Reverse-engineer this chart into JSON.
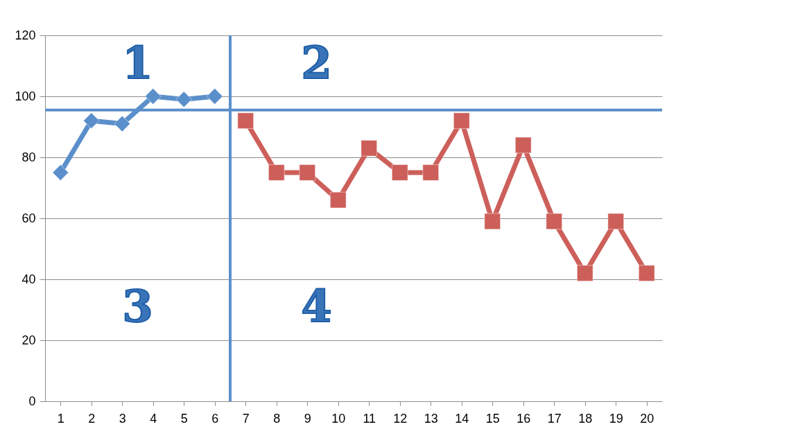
{
  "chart_data": {
    "type": "line",
    "xlim": [
      0.5,
      20.5
    ],
    "xticks": [
      1,
      2,
      3,
      4,
      5,
      6,
      7,
      8,
      9,
      10,
      11,
      12,
      13,
      14,
      15,
      16,
      17,
      18,
      19,
      20
    ],
    "ylim": [
      0,
      120
    ],
    "yticks": [
      0,
      20,
      40,
      60,
      80,
      100,
      120
    ],
    "grid": "y",
    "series": [
      {
        "color": "#5b8fcb",
        "marker": "diamond",
        "x": [
          1,
          2,
          3,
          4,
          5,
          6
        ],
        "values": [
          75,
          92,
          91,
          100,
          99,
          100
        ]
      },
      {
        "color": "#cd5f5a",
        "marker": "square",
        "x": [
          7,
          8,
          9,
          10,
          11,
          12,
          13,
          14,
          15,
          16,
          17,
          18,
          19,
          20
        ],
        "values": [
          92,
          75,
          75,
          66,
          83,
          75,
          75,
          92,
          59,
          84,
          59,
          42,
          59,
          42
        ]
      }
    ],
    "ref_lines": [
      {
        "axis": "y",
        "value": 95.5,
        "color": "#5b8fcb"
      },
      {
        "axis": "x",
        "value": 6.5,
        "color": "#5b8fcb"
      }
    ],
    "annotations": [
      "1",
      "2",
      "3",
      "4"
    ]
  }
}
